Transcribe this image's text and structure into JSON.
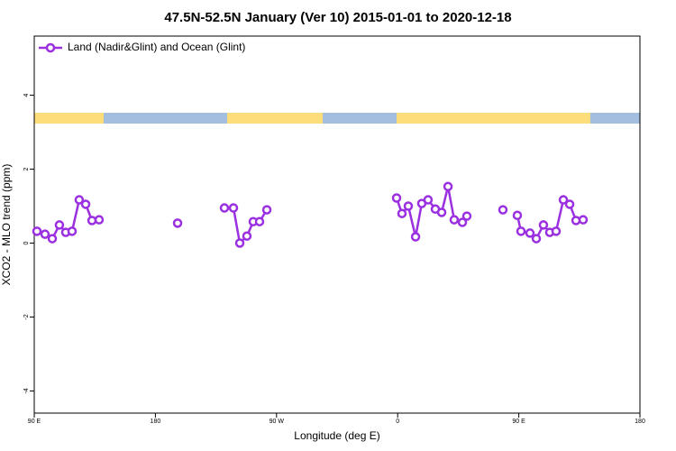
{
  "chart_data": {
    "type": "line",
    "title": "47.5N-52.5N January (Ver 10)   2015-01-01 to 2020-12-18",
    "xlabel": "Longitude (deg E)",
    "ylabel": "XCO2 - MLO trend (ppm)",
    "xlim": [
      90,
      540
    ],
    "ylim": [
      -4.6,
      5.6
    ],
    "xticks": [
      {
        "value": 90,
        "label": "90 E"
      },
      {
        "value": 180,
        "label": "180"
      },
      {
        "value": 270,
        "label": "90 W"
      },
      {
        "value": 360,
        "label": "0"
      },
      {
        "value": 450,
        "label": "90 E"
      },
      {
        "value": 540,
        "label": "180"
      }
    ],
    "yticks": [
      -4,
      -2,
      0,
      2,
      4
    ],
    "legend": "top-left",
    "series": [
      {
        "name": "Land (Nadir&Glint) and Ocean (Glint)",
        "color": "#9b30e0",
        "x": [
          92.0,
          98.0,
          103.4,
          108.7,
          113.4,
          118.1,
          123.4,
          128.2,
          132.9,
          138.2,
          null,
          196.5,
          null,
          231.3,
          238.0,
          242.7,
          248.0,
          252.7,
          257.4,
          262.8,
          null,
          359.2,
          363.2,
          367.9,
          373.3,
          377.9,
          382.6,
          388.0,
          392.7,
          397.4,
          402.0,
          408.1,
          411.4,
          null,
          438.2,
          null,
          448.9,
          451.6,
          458.3,
          463.0,
          468.3,
          473.0,
          477.7,
          483.1,
          487.8,
          492.5,
          497.8
        ],
        "values": [
          0.32,
          0.24,
          0.12,
          0.49,
          0.29,
          0.32,
          1.17,
          1.05,
          0.61,
          0.63,
          null,
          0.54,
          null,
          0.95,
          0.95,
          0.0,
          0.19,
          0.58,
          0.58,
          0.9,
          null,
          1.22,
          0.8,
          1.0,
          0.17,
          1.07,
          1.17,
          0.92,
          0.83,
          1.53,
          0.63,
          0.56,
          0.73,
          null,
          0.9,
          null,
          0.75,
          0.32,
          0.27,
          0.12,
          0.49,
          0.29,
          0.32,
          1.17,
          1.05,
          0.61,
          0.63
        ]
      }
    ]
  }
}
